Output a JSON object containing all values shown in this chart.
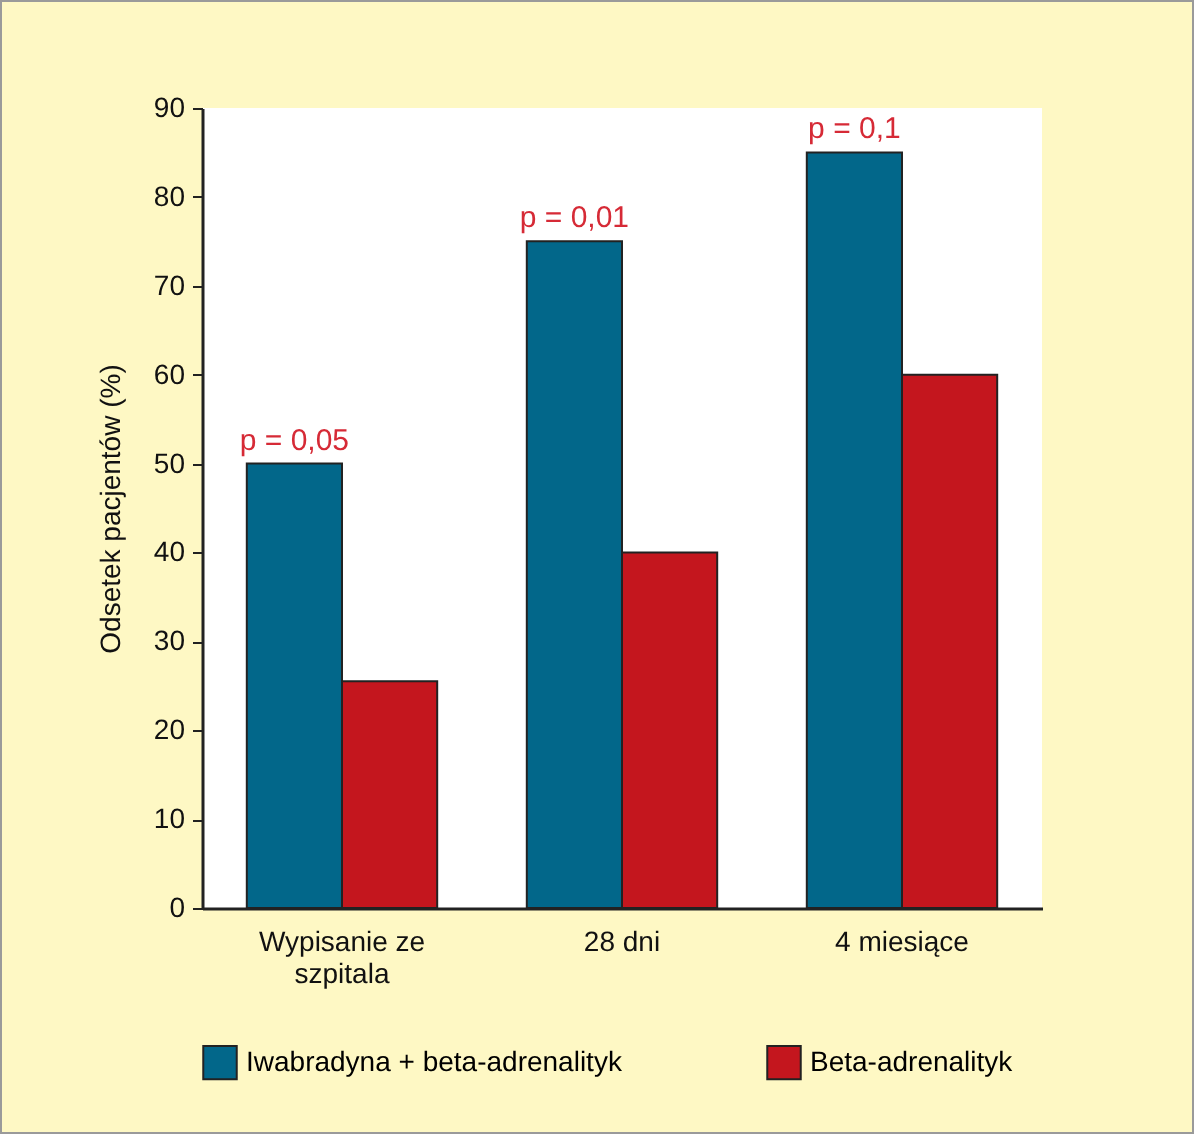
{
  "chart_data": {
    "type": "bar",
    "ylabel": "Odsetek pacjentów (%)",
    "categories": [
      "Wypisanie ze szpitala",
      "28 dni",
      "4 miesiące"
    ],
    "series": [
      {
        "name": "Iwabradyna + beta-adrenalityk",
        "color": "#02678a",
        "values": [
          50,
          75,
          85
        ]
      },
      {
        "name": "Beta-adrenalityk",
        "color": "#c4161e",
        "values": [
          25.5,
          40,
          60
        ]
      }
    ],
    "ylim": [
      0,
      90
    ],
    "yticks": [
      0,
      10,
      20,
      30,
      40,
      50,
      60,
      70,
      80,
      90
    ],
    "grid": false,
    "legend": "bottom",
    "annotations": [
      {
        "text": "p = 0,05",
        "x": "Wypisanie ze szpitala",
        "y": 50
      },
      {
        "text": "p = 0,01",
        "x": "28 dni",
        "y": 75
      },
      {
        "text": "p = 0,1",
        "x": "4 miesiące",
        "y": 85
      }
    ]
  }
}
